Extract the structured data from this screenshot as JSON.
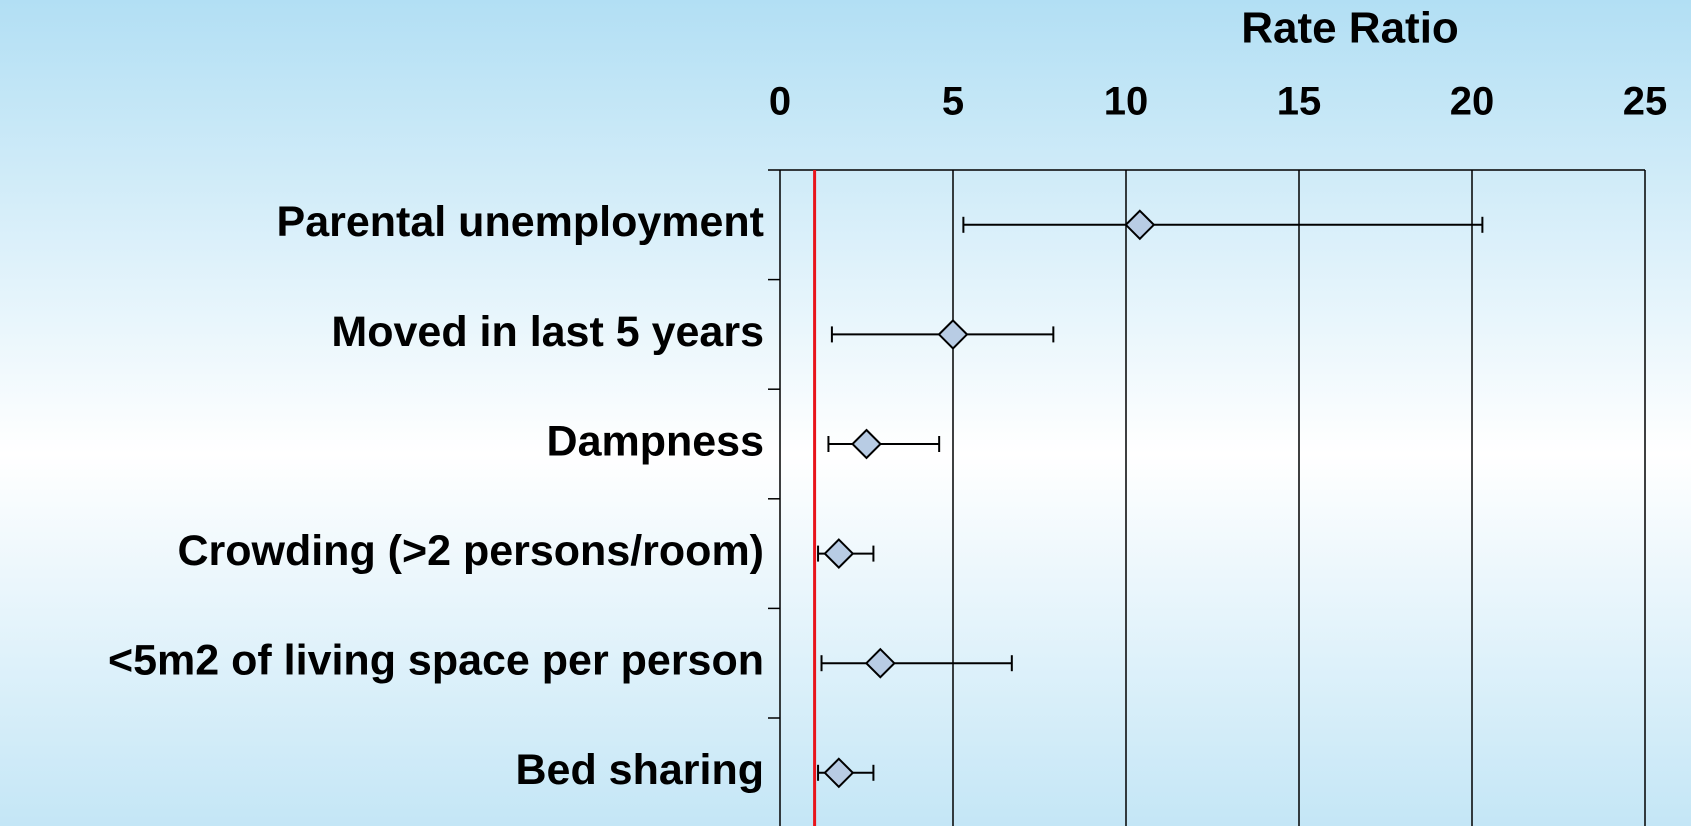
{
  "chart_data": {
    "type": "forest",
    "x_label": "Rate Ratio",
    "categories": [
      "Parental unemployment",
      "Moved in last 5 years",
      "Dampness",
      "Crowding (>2 persons/room)",
      "<5m2 of living space per person",
      "Bed sharing"
    ],
    "values": [
      10.4,
      5.0,
      2.5,
      1.7,
      2.9,
      1.7
    ],
    "lower": [
      5.3,
      1.5,
      1.4,
      1.1,
      1.2,
      1.1
    ],
    "upper": [
      20.3,
      7.9,
      4.6,
      2.7,
      6.7,
      2.7
    ],
    "xlim": [
      0,
      25
    ],
    "xticks": [
      0,
      5,
      10,
      15,
      20,
      25
    ],
    "reference_line": 1,
    "reference_color": "#e8141b",
    "marker_color": "#b8cce4",
    "grid": true
  }
}
